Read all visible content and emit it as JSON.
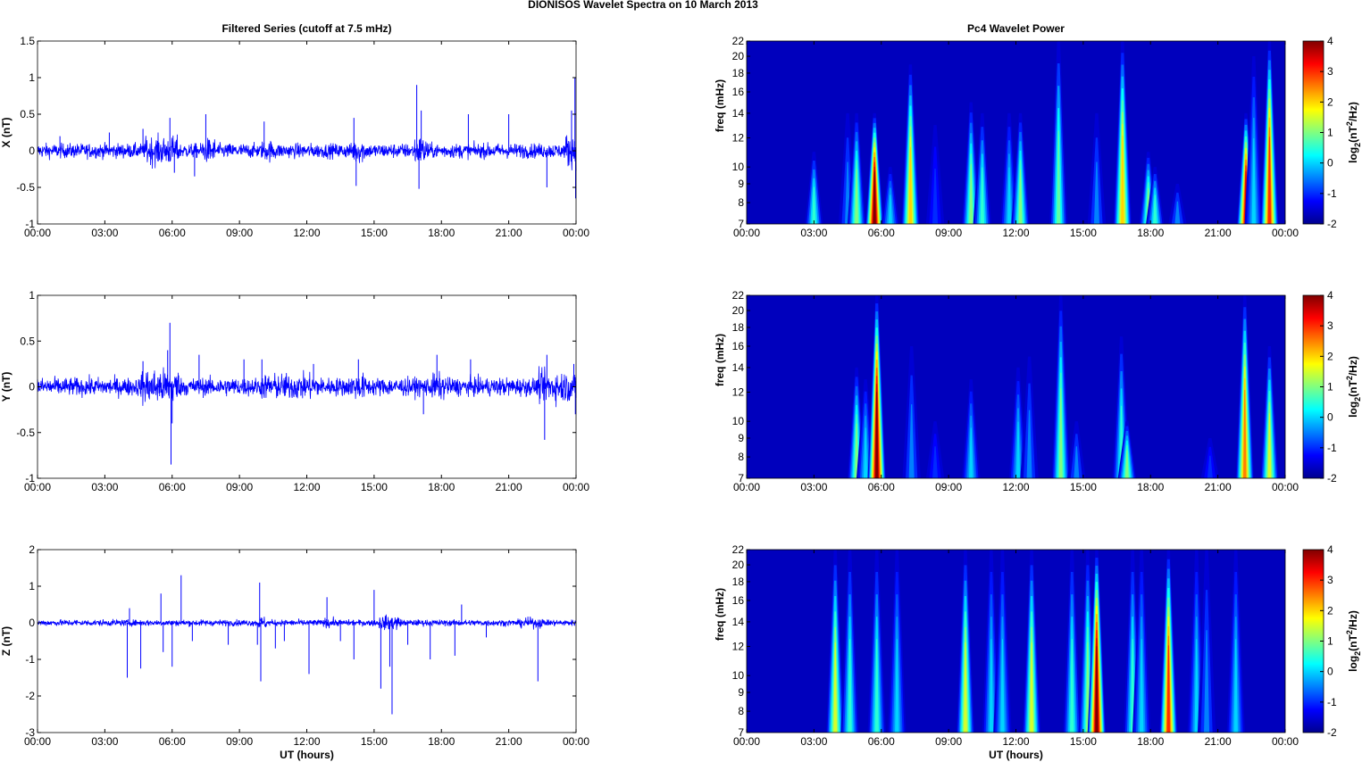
{
  "suptitle": "DIONISOS Wavelet Spectra on 10 March     2013",
  "chart_data": [
    {
      "type": "line",
      "panel": "X",
      "title": "Filtered Series (cutoff at 7.5 mHz)",
      "ylabel": "X (nT)",
      "xlabel": "",
      "ylim": [
        -1,
        1.5
      ],
      "yticks": [
        "-1",
        "-0.5",
        "0",
        "0.5",
        "1",
        "1.5"
      ],
      "xlim_hours": [
        0,
        24
      ],
      "xticks": [
        "00:00",
        "03:00",
        "06:00",
        "09:00",
        "12:00",
        "15:00",
        "18:00",
        "21:00",
        "00:00"
      ],
      "color": "#0000ff",
      "noise_amplitude": 0.07,
      "active_intervals": [
        [
          4.8,
          6.3,
          0.14
        ],
        [
          7.3,
          7.9,
          0.12
        ],
        [
          10.0,
          10.6,
          0.1
        ],
        [
          14.0,
          14.6,
          0.12
        ],
        [
          16.8,
          17.4,
          0.14
        ],
        [
          23.5,
          24,
          0.16
        ]
      ],
      "spikes": [
        [
          5.9,
          0.45
        ],
        [
          6.1,
          -0.3
        ],
        [
          7.5,
          0.5
        ],
        [
          7.0,
          -0.35
        ],
        [
          10.1,
          0.4
        ],
        [
          14.1,
          0.45
        ],
        [
          14.2,
          -0.48
        ],
        [
          16.9,
          0.9
        ],
        [
          17.0,
          -0.52
        ],
        [
          17.1,
          0.55
        ],
        [
          19.2,
          0.5
        ],
        [
          21.0,
          0.5
        ],
        [
          22.7,
          -0.5
        ],
        [
          23.8,
          0.55
        ],
        [
          23.95,
          1.0
        ],
        [
          23.98,
          -0.65
        ],
        [
          4.7,
          0.3
        ],
        [
          1.0,
          0.2
        ],
        [
          3.2,
          0.25
        ]
      ]
    },
    {
      "type": "line",
      "panel": "Y",
      "title": "",
      "ylabel": "Y (nT)",
      "xlabel": "",
      "ylim": [
        -1,
        1
      ],
      "yticks": [
        "-1",
        "-0.5",
        "0",
        "0.5",
        "1"
      ],
      "xlim_hours": [
        0,
        24
      ],
      "xticks": [
        "00:00",
        "03:00",
        "06:00",
        "09:00",
        "12:00",
        "15:00",
        "18:00",
        "21:00",
        "00:00"
      ],
      "color": "#0000ff",
      "noise_amplitude": 0.07,
      "active_intervals": [
        [
          4.6,
          6.3,
          0.14
        ],
        [
          10.0,
          12.5,
          0.1
        ],
        [
          14.0,
          14.6,
          0.1
        ],
        [
          17.5,
          18.2,
          0.1
        ],
        [
          22.3,
          24,
          0.12
        ]
      ],
      "spikes": [
        [
          4.7,
          0.28
        ],
        [
          5.9,
          0.7
        ],
        [
          5.95,
          -0.85
        ],
        [
          5.8,
          0.4
        ],
        [
          6.0,
          -0.4
        ],
        [
          7.2,
          0.35
        ],
        [
          9.2,
          0.3
        ],
        [
          10.0,
          0.3
        ],
        [
          12.3,
          0.25
        ],
        [
          14.3,
          0.3
        ],
        [
          17.8,
          0.35
        ],
        [
          17.2,
          -0.3
        ],
        [
          19.3,
          0.3
        ],
        [
          22.6,
          -0.58
        ],
        [
          22.7,
          0.35
        ],
        [
          23.9,
          0.25
        ],
        [
          23.97,
          -0.3
        ]
      ]
    },
    {
      "type": "line",
      "panel": "Z",
      "title": "",
      "ylabel": "Z (nT)",
      "xlabel": "UT (hours)",
      "ylim": [
        -3,
        2
      ],
      "yticks": [
        "-3",
        "-2",
        "-1",
        "0",
        "1",
        "2"
      ],
      "xlim_hours": [
        0,
        24
      ],
      "xticks": [
        "00:00",
        "03:00",
        "06:00",
        "09:00",
        "12:00",
        "15:00",
        "18:00",
        "21:00",
        "00:00"
      ],
      "color": "#0000ff",
      "noise_amplitude": 0.06,
      "active_intervals": [
        [
          9.8,
          10.2,
          0.12
        ],
        [
          12.8,
          13.2,
          0.1
        ],
        [
          15.2,
          16.2,
          0.14
        ],
        [
          21.5,
          22.5,
          0.1
        ]
      ],
      "spikes": [
        [
          4.0,
          -1.5
        ],
        [
          4.1,
          0.4
        ],
        [
          4.6,
          -1.25
        ],
        [
          5.5,
          0.8
        ],
        [
          5.6,
          -0.8
        ],
        [
          6.0,
          -1.2
        ],
        [
          6.4,
          1.3
        ],
        [
          6.9,
          -0.5
        ],
        [
          8.5,
          -0.6
        ],
        [
          9.8,
          -0.6
        ],
        [
          9.9,
          1.1
        ],
        [
          9.95,
          -1.6
        ],
        [
          10.6,
          -0.7
        ],
        [
          11.0,
          -0.5
        ],
        [
          12.1,
          -1.4
        ],
        [
          12.9,
          0.7
        ],
        [
          13.5,
          -0.5
        ],
        [
          14.1,
          -1.0
        ],
        [
          15.0,
          0.9
        ],
        [
          15.3,
          -1.8
        ],
        [
          15.7,
          -1.2
        ],
        [
          15.8,
          -2.5
        ],
        [
          16.5,
          -0.6
        ],
        [
          17.5,
          -1.0
        ],
        [
          18.6,
          -0.9
        ],
        [
          18.9,
          0.5
        ],
        [
          22.3,
          -1.6
        ],
        [
          20.0,
          -0.4
        ]
      ]
    },
    {
      "type": "heatmap",
      "panel": "X",
      "title": "Pc4 Wavelet Power",
      "ylabel": "freq (mHz)",
      "xlabel": "",
      "yscale": "log",
      "ylim": [
        7,
        22
      ],
      "yticks": [
        "7",
        "8",
        "9",
        "10",
        "12",
        "14",
        "16",
        "18",
        "20",
        "22"
      ],
      "xticks": [
        "00:00",
        "03:00",
        "06:00",
        "09:00",
        "12:00",
        "15:00",
        "18:00",
        "21:00",
        "00:00"
      ],
      "colorbar": {
        "label": "log2(nT^2/Hz)",
        "label_base": "log",
        "label_sub": "2",
        "label_mid": "(nT",
        "label_sup": "2",
        "label_end": "/Hz)",
        "clim": [
          -2,
          4
        ],
        "ticks": [
          "-2",
          "-1",
          "0",
          "1",
          "2",
          "3",
          "4"
        ]
      },
      "background_level": -2,
      "bursts": [
        [
          3.0,
          0.5,
          11
        ],
        [
          4.5,
          -0.5,
          14
        ],
        [
          4.9,
          1.0,
          14
        ],
        [
          5.7,
          4.0,
          14
        ],
        [
          6.4,
          0.0,
          10
        ],
        [
          7.3,
          2.0,
          19
        ],
        [
          8.4,
          -1.0,
          13
        ],
        [
          10.0,
          1.0,
          15
        ],
        [
          10.5,
          0.5,
          14
        ],
        [
          11.7,
          0.0,
          14
        ],
        [
          12.2,
          1.0,
          14
        ],
        [
          13.9,
          0.8,
          22
        ],
        [
          15.6,
          -0.5,
          14
        ],
        [
          16.75,
          2.0,
          22
        ],
        [
          17.9,
          1.0,
          11
        ],
        [
          18.2,
          0.5,
          10
        ],
        [
          19.2,
          -0.5,
          9
        ],
        [
          22.25,
          3.5,
          14
        ],
        [
          22.6,
          0.0,
          20
        ],
        [
          23.3,
          3.0,
          22
        ]
      ]
    },
    {
      "type": "heatmap",
      "panel": "Y",
      "title": "",
      "ylabel": "freq (mHz)",
      "xlabel": "",
      "yscale": "log",
      "ylim": [
        7,
        22
      ],
      "yticks": [
        "7",
        "8",
        "9",
        "10",
        "12",
        "14",
        "16",
        "18",
        "20",
        "22"
      ],
      "xticks": [
        "00:00",
        "03:00",
        "06:00",
        "09:00",
        "12:00",
        "15:00",
        "18:00",
        "21:00",
        "00:00"
      ],
      "colorbar": {
        "label": "log2(nT^2/Hz)",
        "label_base": "log",
        "label_sub": "2",
        "label_mid": "(nT",
        "label_sup": "2",
        "label_end": "/Hz)",
        "clim": [
          -2,
          4
        ],
        "ticks": [
          "-2",
          "-1",
          "0",
          "1",
          "2",
          "3",
          "4"
        ]
      },
      "background_level": -2,
      "bursts": [
        [
          4.9,
          1.0,
          14
        ],
        [
          5.3,
          0.0,
          13
        ],
        [
          5.8,
          4.0,
          22
        ],
        [
          7.35,
          -0.5,
          16
        ],
        [
          8.4,
          -1.0,
          10
        ],
        [
          10.0,
          0.0,
          13
        ],
        [
          12.1,
          0.0,
          14
        ],
        [
          12.6,
          -0.5,
          15
        ],
        [
          14.0,
          1.0,
          22
        ],
        [
          14.7,
          -0.5,
          10
        ],
        [
          16.7,
          0.5,
          17
        ],
        [
          16.95,
          1.0,
          10
        ],
        [
          20.65,
          -1.0,
          9
        ],
        [
          22.2,
          2.5,
          22
        ],
        [
          23.3,
          1.5,
          16
        ]
      ]
    },
    {
      "type": "heatmap",
      "panel": "Z",
      "title": "",
      "ylabel": "freq (mHz)",
      "xlabel": "UT (hours)",
      "yscale": "log",
      "ylim": [
        7,
        22
      ],
      "yticks": [
        "7",
        "8",
        "9",
        "10",
        "12",
        "14",
        "16",
        "18",
        "20",
        "22"
      ],
      "xticks": [
        "00:00",
        "03:00",
        "06:00",
        "09:00",
        "12:00",
        "15:00",
        "18:00",
        "21:00",
        "00:00"
      ],
      "colorbar": {
        "label": "log2(nT^2/Hz)",
        "label_base": "log",
        "label_sub": "2",
        "label_mid": "(nT",
        "label_sup": "2",
        "label_end": "/Hz)",
        "clim": [
          -2,
          4
        ],
        "ticks": [
          "-2",
          "-1",
          "0",
          "1",
          "2",
          "3",
          "4"
        ]
      },
      "background_level": -2,
      "bursts": [
        [
          3.95,
          1.5,
          22
        ],
        [
          4.6,
          0.5,
          22
        ],
        [
          5.8,
          0.5,
          22
        ],
        [
          6.7,
          0.0,
          22
        ],
        [
          9.75,
          1.5,
          22
        ],
        [
          10.9,
          0.0,
          22
        ],
        [
          11.4,
          0.0,
          22
        ],
        [
          12.7,
          1.5,
          22
        ],
        [
          14.5,
          0.5,
          22
        ],
        [
          15.2,
          1.0,
          22
        ],
        [
          15.6,
          4.0,
          22
        ],
        [
          17.2,
          0.5,
          22
        ],
        [
          17.6,
          0.0,
          22
        ],
        [
          18.8,
          3.0,
          22
        ],
        [
          20.05,
          0.0,
          22
        ],
        [
          20.5,
          -0.5,
          22
        ],
        [
          21.8,
          0.0,
          22
        ]
      ]
    }
  ]
}
